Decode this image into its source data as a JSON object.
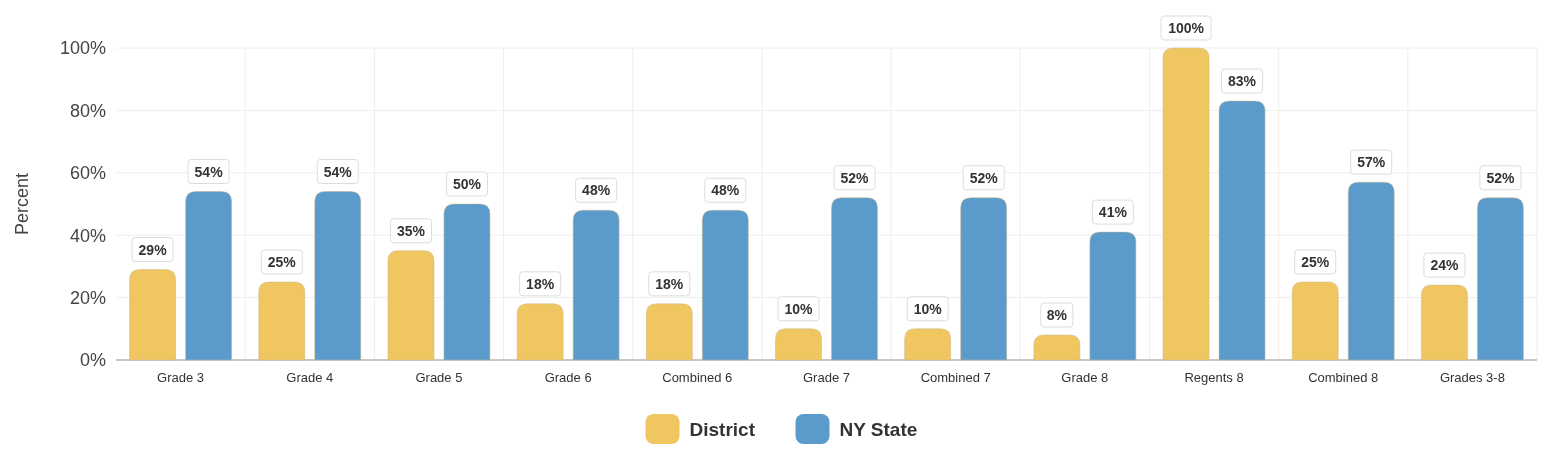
{
  "chart_data": {
    "type": "bar",
    "ylabel": "Percent",
    "categories": [
      "Grade 3",
      "Grade 4",
      "Grade 5",
      "Grade 6",
      "Combined 6",
      "Grade 7",
      "Combined 7",
      "Grade 8",
      "Regents 8",
      "Combined 8",
      "Grades 3-8"
    ],
    "series": [
      {
        "name": "District",
        "color": "#f0c660",
        "values": [
          29,
          25,
          35,
          18,
          18,
          10,
          10,
          8,
          100,
          25,
          24
        ],
        "value_labels": [
          "29%",
          "25%",
          "35%",
          "18%",
          "18%",
          "10%",
          "10%",
          "8%",
          "100%",
          "25%",
          "24%"
        ]
      },
      {
        "name": "NY State",
        "color": "#5b9bcb",
        "values": [
          54,
          54,
          50,
          48,
          48,
          52,
          52,
          41,
          83,
          57,
          52
        ],
        "value_labels": [
          "54%",
          "54%",
          "50%",
          "48%",
          "48%",
          "52%",
          "52%",
          "41%",
          "83%",
          "57%",
          "52%"
        ]
      }
    ],
    "ylim": [
      0,
      100
    ],
    "yticks": [
      {
        "value": 0,
        "label": "0%"
      },
      {
        "value": 20,
        "label": "20%"
      },
      {
        "value": 40,
        "label": "40%"
      },
      {
        "value": 60,
        "label": "60%"
      },
      {
        "value": 80,
        "label": "80%"
      },
      {
        "value": 100,
        "label": "100%"
      }
    ],
    "grid": true,
    "legend": "bottom"
  }
}
